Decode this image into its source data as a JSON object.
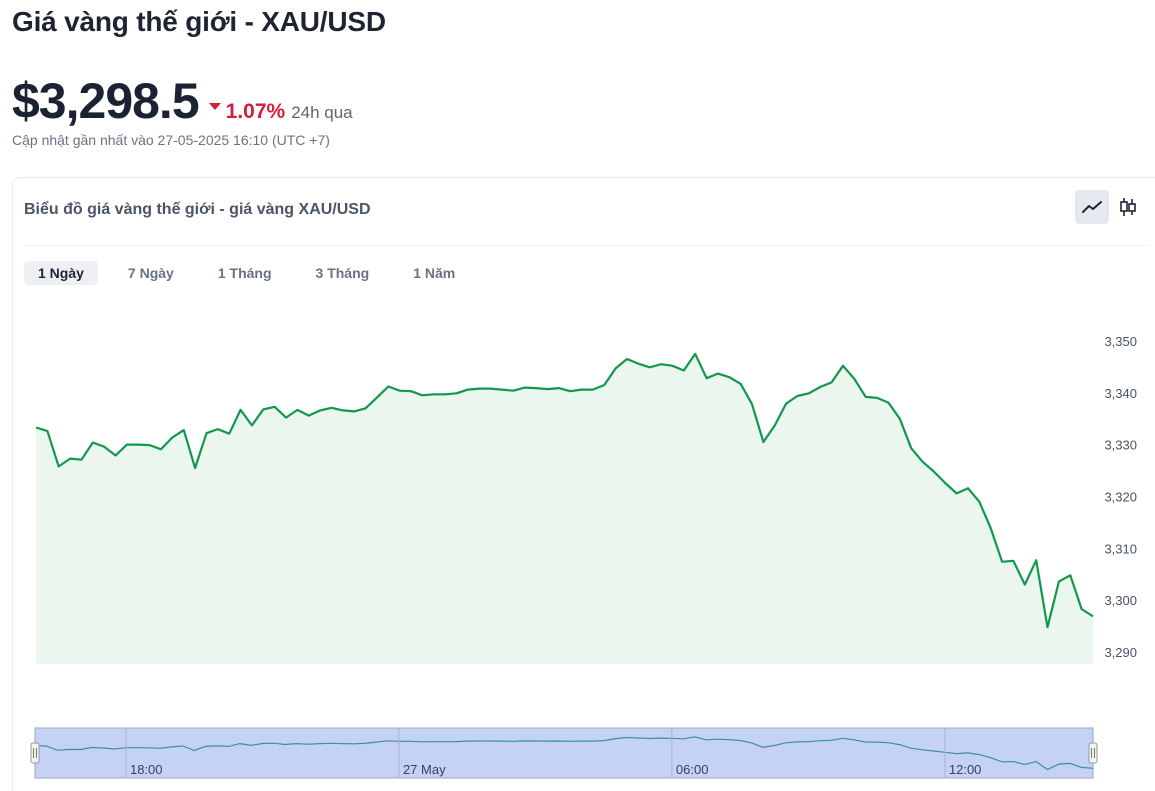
{
  "header": {
    "title": "Giá vàng thế giới - XAU/USD",
    "price": "$3,298.5",
    "change_pct": "1.07%",
    "change_period": "24h qua",
    "updated": "Cập nhật gần nhất vào 27-05-2025 16:10 (UTC +7)"
  },
  "card": {
    "title": "Biểu đồ giá vàng thế giới - giá vàng XAU/USD",
    "toggle": {
      "line_icon": "line-chart-icon",
      "candle_icon": "candlestick-icon",
      "active": "line"
    }
  },
  "tabs": [
    {
      "label": "1 Ngày",
      "active": true
    },
    {
      "label": "7 Ngày",
      "active": false
    },
    {
      "label": "1 Tháng",
      "active": false
    },
    {
      "label": "3 Tháng",
      "active": false
    },
    {
      "label": "1 Năm",
      "active": false
    }
  ],
  "colors": {
    "line": "#12984a",
    "area": "#ebf6ef",
    "negative": "#d11f3c",
    "navigator_fill": "#c5d2f6",
    "navigator_line": "#3f8e9e"
  },
  "chart_data": {
    "type": "area",
    "series": [
      {
        "values": [
          3333.5,
          3332.8,
          3326.0,
          3327.5,
          3327.3,
          3330.6,
          3329.8,
          3328.1,
          3330.2,
          3330.2,
          3330.1,
          3329.3,
          3331.6,
          3333.0,
          3325.7,
          3332.4,
          3333.2,
          3332.3,
          3336.9,
          3333.9,
          3337.0,
          3337.5,
          3335.4,
          3336.9,
          3335.8,
          3336.8,
          3337.3,
          3336.8,
          3336.6,
          3337.2,
          3339.3,
          3341.4,
          3340.6,
          3340.5,
          3339.7,
          3339.9,
          3339.9,
          3340.1,
          3340.8,
          3341.0,
          3341.0,
          3340.8,
          3340.6,
          3341.2,
          3341.1,
          3340.9,
          3341.1,
          3340.5,
          3340.8,
          3340.8,
          3341.7,
          3344.9,
          3346.7,
          3345.8,
          3345.1,
          3345.7,
          3345.4,
          3344.5,
          3347.7,
          3343.0,
          3343.9,
          3343.2,
          3341.9,
          3338.0,
          3330.7,
          3333.9,
          3338.1,
          3339.6,
          3340.1,
          3341.3,
          3342.2,
          3345.4,
          3342.9,
          3339.4,
          3339.2,
          3338.3,
          3335.2,
          3329.5,
          3326.9,
          3325.0,
          3322.8,
          3320.8,
          3321.8,
          3319.2,
          3314.1,
          3307.6,
          3307.8,
          3303.2,
          3307.9,
          3295.0,
          3303.8,
          3305.0,
          3298.5,
          3297.1
        ]
      }
    ],
    "y_ticks": [
      "3,350",
      "3,340",
      "3,330",
      "3,320",
      "3,310",
      "3,300",
      "3,290"
    ],
    "y_tick_values": [
      3350,
      3340,
      3330,
      3320,
      3310,
      3300,
      3290
    ],
    "ylim": [
      3287.9,
      3352.3
    ],
    "navigator": {
      "labels": [
        "18:00",
        "27 May",
        "06:00",
        "12:00"
      ],
      "label_fractions": [
        0.086,
        0.344,
        0.602,
        0.86
      ]
    }
  }
}
